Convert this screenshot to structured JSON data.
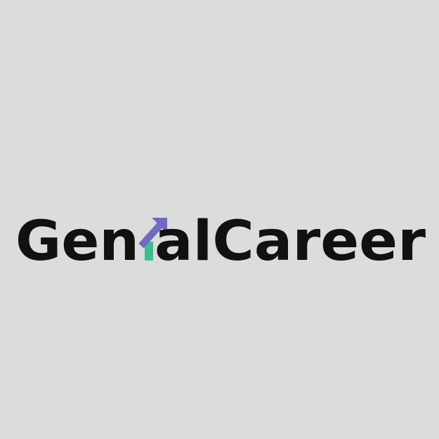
{
  "logo": {
    "wordmark": "GenialCareer",
    "part_before": "Gen",
    "part_after": "alCareer",
    "arrow_icon": "growth-arrow-icon",
    "text_color": "#111111",
    "accent_purple": "#6e6cc0",
    "accent_green": "#3dbd8c"
  },
  "background_color": "#dcdcdc"
}
